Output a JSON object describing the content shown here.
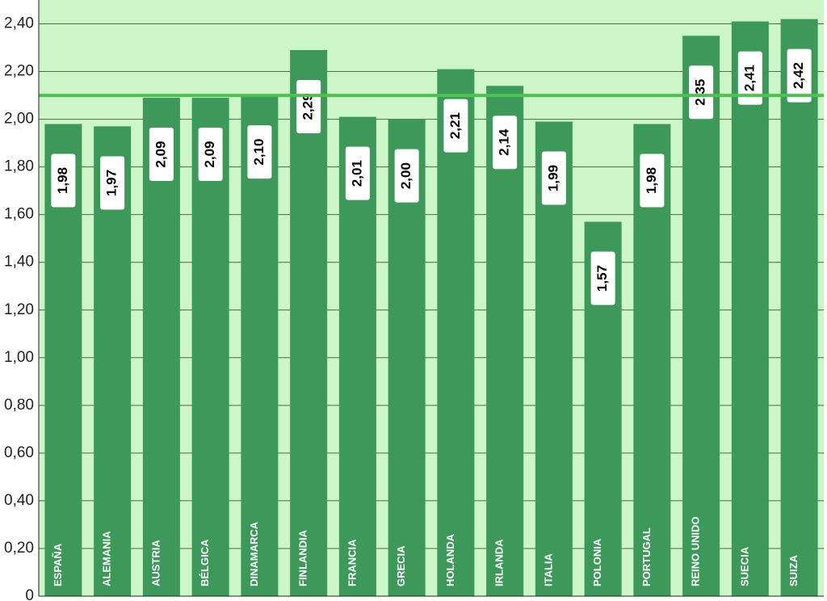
{
  "chart_data": {
    "type": "bar",
    "categories": [
      "ESPAÑA",
      "ALEMANIA",
      "AUSTRIA",
      "BÉLGICA",
      "DINAMARCA",
      "FINLANDIA",
      "FRANCIA",
      "GRECIA",
      "HOLANDA",
      "IRLANDA",
      "ITALIA",
      "POLONIA",
      "PORTUGAL",
      "REINO UNIDO",
      "SUECIA",
      "SUIZA"
    ],
    "values": [
      1.98,
      1.97,
      2.09,
      2.09,
      2.1,
      2.29,
      2.01,
      2.0,
      2.21,
      2.14,
      1.99,
      1.57,
      1.98,
      2.35,
      2.41,
      2.42
    ],
    "value_labels": [
      "1,98",
      "1,97",
      "2,09",
      "2,09",
      "2,10",
      "2,29",
      "2,01",
      "2,00",
      "2,21",
      "2,14",
      "1,99",
      "1,57",
      "1,98",
      "2,35",
      "2,41",
      "2,42"
    ],
    "color": "#3d995a",
    "reference_line": 2.1,
    "ylim": [
      0,
      2.5
    ],
    "yticks": [
      0,
      {
        "value": 0.2,
        "label": "0,20"
      },
      {
        "value": 0.4,
        "label": "0,40"
      },
      {
        "value": 0.6,
        "label": "0,60"
      },
      {
        "value": 0.8,
        "label": "0,80"
      },
      {
        "value": 1.0,
        "label": "1,00"
      },
      {
        "value": 1.2,
        "label": "1,20"
      },
      {
        "value": 1.4,
        "label": "1,40"
      },
      {
        "value": 1.6,
        "label": "1,60"
      },
      {
        "value": 1.8,
        "label": "1,80"
      },
      {
        "value": 2.0,
        "label": "2,00"
      },
      {
        "value": 2.2,
        "label": "2,20"
      },
      {
        "value": 2.4,
        "label": "2,40"
      }
    ],
    "grid": true
  }
}
